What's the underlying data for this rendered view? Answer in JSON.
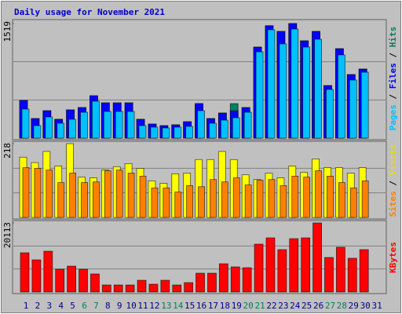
{
  "chart_data": [
    {
      "type": "bar",
      "title": "Daily usage for November 2021",
      "ylim": [
        0,
        1519
      ],
      "yticks": [
        1519
      ],
      "series": [
        {
          "name": "Pages",
          "color": "#00c0ff",
          "values": [
            385,
            166,
            281,
            198,
            250,
            343,
            489,
            354,
            354,
            354,
            166,
            146,
            135,
            146,
            156,
            364,
            198,
            239,
            270,
            343,
            1144,
            1436,
            1249,
            1446,
            1207,
            1311,
            645,
            1103,
            770,
            874,
            null
          ]
        },
        {
          "name": "Files",
          "color": "#0000ff",
          "values": [
            500,
            260,
            364,
            250,
            375,
            406,
            562,
            468,
            468,
            468,
            250,
            187,
            166,
            177,
            218,
            458,
            260,
            333,
            364,
            406,
            1207,
            1490,
            1415,
            1519,
            1290,
            1415,
            697,
            1186,
            843,
            916,
            null
          ]
        },
        {
          "name": "Hits",
          "color": "#00805c",
          "values": [
            500,
            260,
            364,
            250,
            375,
            406,
            562,
            468,
            468,
            468,
            250,
            187,
            166,
            177,
            218,
            458,
            260,
            333,
            458,
            406,
            1207,
            1490,
            1415,
            1519,
            1290,
            1415,
            697,
            1186,
            843,
            916,
            null
          ]
        }
      ]
    },
    {
      "type": "bar",
      "ylim": [
        0,
        218
      ],
      "yticks": [
        218
      ],
      "series": [
        {
          "name": "Sites",
          "color": "#ff8000",
          "values": [
            147,
            145,
            140,
            103,
            131,
            103,
            105,
            138,
            140,
            131,
            122,
            87,
            87,
            75,
            94,
            91,
            112,
            105,
            117,
            96,
            110,
            112,
            94,
            122,
            119,
            138,
            122,
            103,
            87,
            108,
            null
          ]
        },
        {
          "name": "Visits",
          "color": "#ffff00",
          "values": [
            178,
            162,
            195,
            152,
            218,
            119,
            117,
            140,
            150,
            159,
            145,
            108,
            101,
            129,
            131,
            171,
            171,
            195,
            171,
            126,
            112,
            131,
            117,
            152,
            133,
            173,
            147,
            147,
            131,
            147,
            null
          ]
        }
      ]
    },
    {
      "type": "bar",
      "ylim": [
        0,
        20113
      ],
      "yticks": [
        20113
      ],
      "series": [
        {
          "name": "KBytes",
          "color": "#ff0000",
          "values": [
            11430,
            9372,
            11886,
            6629,
            7543,
            6629,
            5258,
            2057,
            2057,
            2057,
            3429,
            2286,
            3429,
            2057,
            2743,
            5486,
            5486,
            8229,
            7315,
            7086,
            13944,
            15773,
            12344,
            15544,
            15773,
            20113,
            10058,
            13030,
            9829,
            12344,
            null
          ]
        }
      ],
      "categories": [
        "1",
        "2",
        "3",
        "4",
        "5",
        "6",
        "7",
        "8",
        "9",
        "10",
        "11",
        "12",
        "13",
        "14",
        "15",
        "16",
        "17",
        "18",
        "19",
        "20",
        "21",
        "22",
        "23",
        "24",
        "25",
        "26",
        "27",
        "28",
        "29",
        "30",
        "31"
      ],
      "category_colors": [
        "#00008b",
        "#00008b",
        "#00008b",
        "#00008b",
        "#00008b",
        "#00805c",
        "#00805c",
        "#00008b",
        "#00008b",
        "#00008b",
        "#00008b",
        "#00008b",
        "#00805c",
        "#00805c",
        "#00008b",
        "#00008b",
        "#00008b",
        "#00008b",
        "#00008b",
        "#00805c",
        "#00805c",
        "#00008b",
        "#00008b",
        "#00008b",
        "#00008b",
        "#00008b",
        "#00805c",
        "#00805c",
        "#00008b",
        "#00008b",
        "#00008b"
      ]
    }
  ]
}
